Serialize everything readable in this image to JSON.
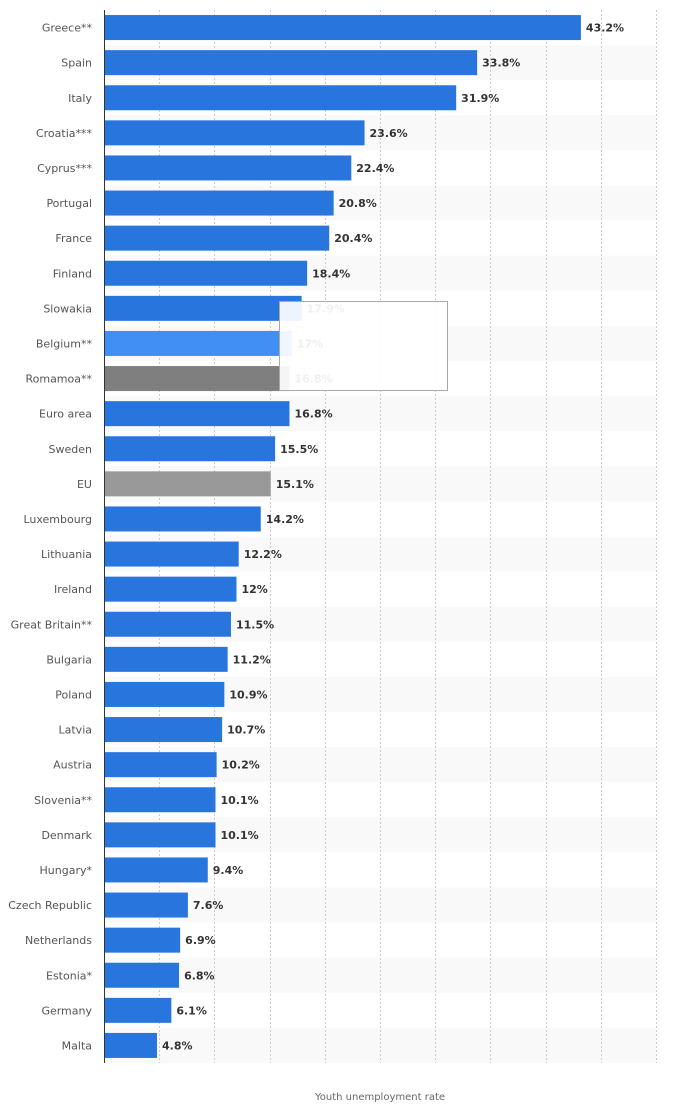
{
  "chart_data": {
    "type": "bar",
    "orientation": "horizontal",
    "title": "",
    "xlabel": "Youth unemployment rate",
    "ylabel": "",
    "xlim": [
      0,
      50
    ],
    "grid": true,
    "value_suffix": "%",
    "categories": [
      "Greece**",
      "Spain",
      "Italy",
      "Croatia***",
      "Cyprus***",
      "Portugal",
      "France",
      "Finland",
      "Slowakia",
      "Belgium**",
      "Romamoa**",
      "Euro area",
      "Sweden",
      "EU",
      "Luxembourg",
      "Lithuania",
      "Ireland",
      "Great Britain**",
      "Bulgaria",
      "Poland",
      "Latvia",
      "Austria",
      "Slovenia**",
      "Denmark",
      "Hungary*",
      "Czech Republic",
      "Netherlands",
      "Estonia*",
      "Germany",
      "Malta"
    ],
    "values": [
      43.2,
      33.8,
      31.9,
      23.6,
      22.4,
      20.8,
      20.4,
      18.4,
      17.9,
      17,
      16.8,
      16.8,
      15.5,
      15.1,
      14.2,
      12.2,
      12,
      11.5,
      11.2,
      10.9,
      10.7,
      10.2,
      10.1,
      10.1,
      9.4,
      7.6,
      6.9,
      6.8,
      6.1,
      4.8
    ],
    "data_labels": [
      "43.2%",
      "33.8%",
      "31.9%",
      "23.6%",
      "22.4%",
      "20.8%",
      "20.4%",
      "18.4%",
      "17.9%",
      "17%",
      "16.8%",
      "16.8%",
      "15.5%",
      "15.1%",
      "14.2%",
      "12.2%",
      "12%",
      "11.5%",
      "11.2%",
      "10.9%",
      "10.7%",
      "10.2%",
      "10.1%",
      "10.1%",
      "9.4%",
      "7.6%",
      "6.9%",
      "6.8%",
      "6.1%",
      "4.8%"
    ],
    "colors": {
      "default": "#2876dd",
      "hovered": "#418ef5",
      "Romamoa**": "#7f7f7f",
      "EU": "#999999"
    },
    "hovered_category": "Belgium**"
  }
}
